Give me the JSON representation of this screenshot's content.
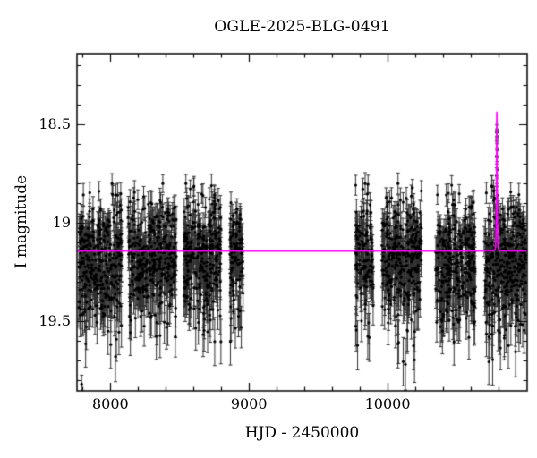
{
  "chart_data": {
    "type": "scatter",
    "title": "OGLE-2025-BLG-0491",
    "xlabel": "HJD - 2450000",
    "ylabel": "I magnitude",
    "xlim": [
      7759,
      11007
    ],
    "ylim_bright_top": 18.139,
    "ylim_faint_bottom": 19.855,
    "y_axis_inverted": true,
    "x_major_ticks": [
      8000,
      9000,
      10000
    ],
    "x_major_tick_labels": [
      "8000",
      "9000",
      "10000"
    ],
    "x_minor_step": 200,
    "y_major_ticks": [
      18.5,
      19.0,
      19.5
    ],
    "y_major_tick_labels": [
      "18.5",
      "19",
      "19.5"
    ],
    "y_minor_step": 0.1,
    "grid": false,
    "legend": "none",
    "point_color": "#000000",
    "errorbar_color": "#2f2f2f",
    "model_color": "#ff00ff",
    "background_color": "#ffffff",
    "model": {
      "baseline_mag": 19.143,
      "t0": 10788,
      "tE_days": 3.5,
      "u0": 0.585,
      "peak_mag": 18.45
    },
    "seasons": [
      {
        "hjd_start": 7772,
        "hjd_end": 8082,
        "n": 340,
        "mag_mean": 19.16,
        "mag_sigma": 0.14,
        "faint_tail": 0.25
      },
      {
        "hjd_start": 8128,
        "hjd_end": 8476,
        "n": 360,
        "mag_mean": 19.16,
        "mag_sigma": 0.14,
        "faint_tail": 0.25
      },
      {
        "hjd_start": 8529,
        "hjd_end": 8799,
        "n": 300,
        "mag_mean": 19.16,
        "mag_sigma": 0.14,
        "faint_tail": 0.25
      },
      {
        "hjd_start": 8863,
        "hjd_end": 8958,
        "n": 100,
        "mag_mean": 19.15,
        "mag_sigma": 0.13,
        "faint_tail": 0.18
      },
      {
        "hjd_start": 9768,
        "hjd_end": 9896,
        "n": 130,
        "mag_mean": 19.15,
        "mag_sigma": 0.14,
        "faint_tail": 0.2
      },
      {
        "hjd_start": 9960,
        "hjd_end": 10244,
        "n": 310,
        "mag_mean": 19.16,
        "mag_sigma": 0.14,
        "faint_tail": 0.25
      },
      {
        "hjd_start": 10348,
        "hjd_end": 10632,
        "n": 310,
        "mag_mean": 19.17,
        "mag_sigma": 0.14,
        "faint_tail": 0.25
      },
      {
        "hjd_start": 10696,
        "hjd_end": 11000,
        "n": 350,
        "mag_mean": 19.18,
        "mag_sigma": 0.15,
        "faint_tail": 0.3
      }
    ],
    "peak_points": [
      {
        "x": 10783.5,
        "mag": 19.02,
        "err": 0.05
      },
      {
        "x": 10785.0,
        "mag": 18.88,
        "err": 0.045
      },
      {
        "x": 10786.2,
        "mag": 18.76,
        "err": 0.04
      },
      {
        "x": 10787.0,
        "mag": 18.66,
        "err": 0.04
      },
      {
        "x": 10787.6,
        "mag": 18.58,
        "err": 0.038
      },
      {
        "x": 10788.0,
        "mag": 18.54,
        "err": 0.038
      },
      {
        "x": 10788.3,
        "mag": 18.53,
        "err": 0.038
      },
      {
        "x": 10788.7,
        "mag": 18.56,
        "err": 0.038
      },
      {
        "x": 10789.3,
        "mag": 18.63,
        "err": 0.04
      },
      {
        "x": 10790.2,
        "mag": 18.73,
        "err": 0.042
      },
      {
        "x": 10791.2,
        "mag": 18.86,
        "err": 0.045
      },
      {
        "x": 10792.6,
        "mag": 19.0,
        "err": 0.05
      }
    ],
    "outlier_points": [
      {
        "x": 7793,
        "mag": 19.82,
        "err": 0.045
      }
    ],
    "seed": 42
  }
}
